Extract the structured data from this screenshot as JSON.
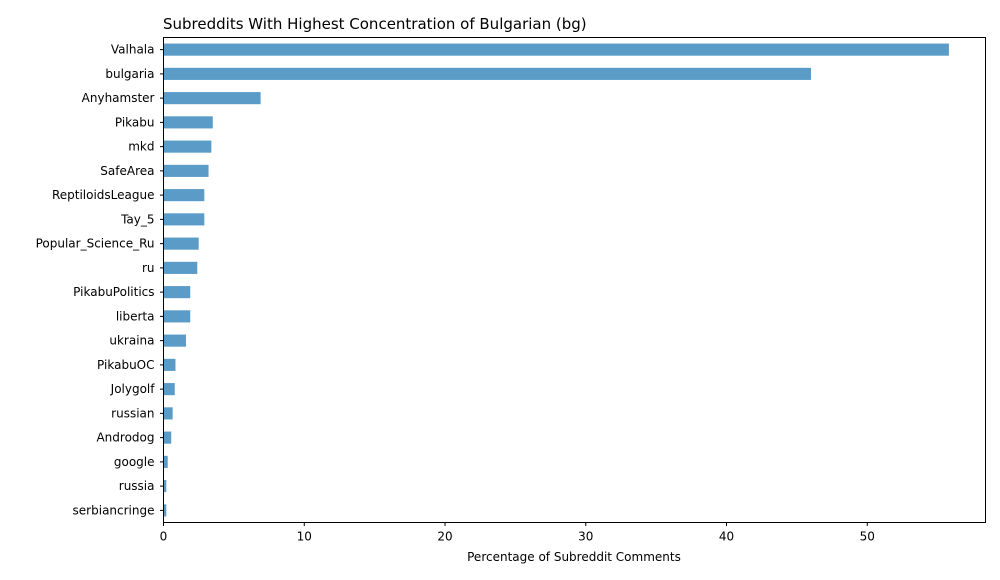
{
  "chart_data": {
    "type": "bar",
    "orientation": "horizontal",
    "title": "Subreddits With Highest Concentration of Bulgarian (bg)",
    "xlabel": "Percentage of Subreddit Comments",
    "ylabel": "",
    "xlim": [
      0,
      58.4
    ],
    "xticks": [
      0,
      10,
      20,
      30,
      40,
      50
    ],
    "grid": false,
    "bar_color": "#5a9bc8",
    "categories": [
      "Valhala",
      "bulgaria",
      "Anyhamster",
      "Pikabu",
      "mkd",
      "SafeArea",
      "ReptiloidsLeague",
      "Tay_5",
      "Popular_Science_Ru",
      "ru",
      "PikabuPolitics",
      "liberta",
      "ukraina",
      "PikabuOC",
      "Jolygolf",
      "russian",
      "Androdog",
      "google",
      "russia",
      "serbiancringe"
    ],
    "values": [
      55.8,
      46.0,
      6.9,
      3.5,
      3.4,
      3.2,
      2.9,
      2.9,
      2.5,
      2.4,
      1.9,
      1.9,
      1.6,
      0.85,
      0.8,
      0.65,
      0.55,
      0.3,
      0.2,
      0.2
    ]
  }
}
